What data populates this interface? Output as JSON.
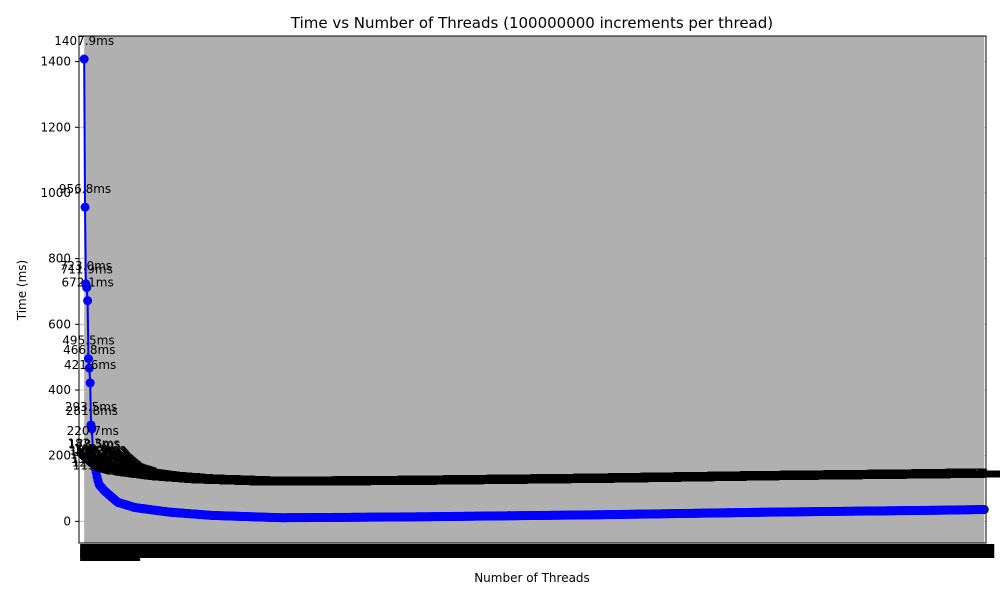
{
  "chart_data": {
    "type": "line",
    "title": "Time vs Number of Threads (100000000 increments per thread)",
    "xlabel": "Number of Threads",
    "ylabel": "Time (ms)",
    "ylim": [
      -66,
      1478
    ],
    "yticks": [
      0,
      200,
      400,
      600,
      800,
      1000,
      1200,
      1400
    ],
    "xlim": [
      -5,
      1050
    ],
    "grid": "y",
    "series_color": "#0000ff",
    "labeled_points": [
      {
        "x": 1,
        "y": 1407.9,
        "label": "1407.9ms"
      },
      {
        "x": 2,
        "y": 956.8,
        "label": "956.8ms"
      },
      {
        "x": 3,
        "y": 723.0,
        "label": "723.0ms"
      },
      {
        "x": 4,
        "y": 711.9,
        "label": "711.9ms"
      },
      {
        "x": 5,
        "y": 672.1,
        "label": "672.1ms"
      },
      {
        "x": 6,
        "y": 495.5,
        "label": "495.5ms"
      },
      {
        "x": 7,
        "y": 466.8,
        "label": "466.8ms"
      },
      {
        "x": 8,
        "y": 421.6,
        "label": "421.6ms"
      },
      {
        "x": 9,
        "y": 293.5,
        "label": "293.5ms"
      },
      {
        "x": 10,
        "y": 281.8,
        "label": "281.8ms"
      },
      {
        "x": 11,
        "y": 220.7,
        "label": "220.7ms"
      },
      {
        "x": 12,
        "y": 182.3,
        "label": "182.3ms"
      },
      {
        "x": 13,
        "y": 178.5,
        "label": "178.5ms"
      },
      {
        "x": 14,
        "y": 160.2,
        "label": "160.2ms"
      },
      {
        "x": 15,
        "y": 148.6,
        "label": "148.6ms"
      },
      {
        "x": 16,
        "y": 135.4,
        "label": "135.4ms"
      },
      {
        "x": 17,
        "y": 124.9,
        "label": "124.9ms"
      },
      {
        "x": 18,
        "y": 115.7,
        "label": "115.7ms"
      }
    ],
    "tail_model": {
      "x_start": 19,
      "x_end": 1048,
      "description": "approximate continuous curve: decays to a minimum of ~11 ms near 230 threads, then rises slowly to ~36 ms at 1048 threads",
      "anchors": [
        [
          19,
          110
        ],
        [
          25,
          92
        ],
        [
          40,
          58
        ],
        [
          60,
          42
        ],
        [
          100,
          28
        ],
        [
          150,
          18
        ],
        [
          230,
          11
        ],
        [
          300,
          12
        ],
        [
          400,
          14
        ],
        [
          500,
          17
        ],
        [
          600,
          20
        ],
        [
          700,
          24
        ],
        [
          800,
          28
        ],
        [
          900,
          31
        ],
        [
          1000,
          34
        ],
        [
          1048,
          36
        ]
      ],
      "label_offset": 55
    }
  }
}
